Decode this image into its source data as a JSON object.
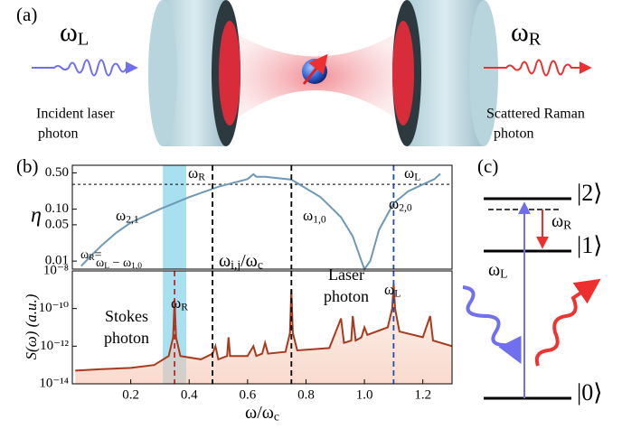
{
  "panel_labels": [
    "(a)",
    "(b)",
    "(c)"
  ],
  "panel_a": {
    "left": {
      "symbol": "ω",
      "sub": "L",
      "caption": [
        "Incident laser",
        "photon"
      ]
    },
    "right": {
      "symbol": "ω",
      "sub": "R",
      "caption": [
        "Scattered Raman",
        "photon"
      ]
    }
  },
  "chart_data": [
    {
      "type": "line",
      "log_y": true,
      "ylabel": "η",
      "xlim": [
        0,
        1.3
      ],
      "ylim": [
        0.007,
        0.7
      ],
      "yticks": [
        0.01,
        0.05,
        {
          "value": 0.1,
          "label": "0.10"
        },
        {
          "value": 0.5,
          "label": "0.50"
        }
      ],
      "hlines": [
        0.3
      ],
      "span": {
        "x": [
          0.31,
          0.39
        ],
        "color": "#a8e0ef"
      },
      "vlines": [
        {
          "x": 0.48,
          "color": "#000000"
        },
        {
          "x": 0.75,
          "color": "#000000"
        },
        {
          "x": 1.1,
          "color": "#1f4fa0"
        }
      ],
      "x": [
        0.03,
        0.06,
        0.1,
        0.15,
        0.2,
        0.3,
        0.4,
        0.5,
        0.6,
        0.62,
        0.63,
        0.66,
        0.75,
        0.85,
        0.92,
        0.96,
        0.99,
        1.0,
        1.02,
        1.05,
        1.1,
        1.15,
        1.2,
        1.24,
        1.26
      ],
      "series": [
        {
          "color": "#6f98b4",
          "values": [
            0.008,
            0.012,
            0.02,
            0.035,
            0.055,
            0.1,
            0.17,
            0.27,
            0.38,
            0.47,
            0.42,
            0.42,
            0.37,
            0.17,
            0.07,
            0.03,
            0.01,
            0.007,
            0.01,
            0.04,
            0.13,
            0.22,
            0.3,
            0.38,
            0.48
          ]
        }
      ],
      "annotations": {
        "omega_R": {
          "symbol": "ω",
          "sub": "R"
        },
        "omega_L": {
          "symbol": "ω",
          "sub": "L"
        },
        "omega_21": {
          "symbol": "ω",
          "sub": "2,1"
        },
        "omega_10": {
          "symbol": "ω",
          "sub": "1,0"
        },
        "omega_20": {
          "symbol": "ω",
          "sub": "2,0"
        },
        "omega_ij": {
          "symbol": "ω",
          "sub": "i,j",
          "rest": "/ω",
          "sub2": "c"
        },
        "relation": {
          "lhs": "ω",
          "lhs_sub": "R",
          "eq": "=",
          "rhs": "ω",
          "rhs_sub": "L",
          "minus": " − ω",
          "minus_sub": "1,0"
        }
      }
    },
    {
      "type": "area",
      "log_y": true,
      "ylabel": "S(ω) (a.u.)",
      "xlabel": {
        "symbol": "ω/ω",
        "sub": "c"
      },
      "xlim": [
        0,
        1.3
      ],
      "ylim": [
        1e-14,
        1e-08
      ],
      "xticks": [
        0.2,
        0.4,
        0.6,
        0.8,
        {
          "value": 1,
          "label": "1.0"
        },
        1.2
      ],
      "yticks": [
        {
          "value": 1e-14,
          "label": "10⁻¹⁴"
        },
        {
          "value": 1e-12,
          "label": "10⁻¹²"
        },
        {
          "value": 1e-10,
          "label": "10⁻¹⁰"
        },
        {
          "value": 1e-08,
          "label": "10⁻⁸"
        }
      ],
      "span": {
        "x": [
          0.31,
          0.39
        ],
        "color": "#a8e0ef"
      },
      "vlines": [
        {
          "x": 0.35,
          "color": "#c0282d"
        },
        {
          "x": 0.48,
          "color": "#000000"
        },
        {
          "x": 0.75,
          "color": "#000000"
        },
        {
          "x": 1.1,
          "color": "#1f4fa0"
        }
      ],
      "x": [
        0.01,
        0.1,
        0.2,
        0.28,
        0.33,
        0.345,
        0.35,
        0.355,
        0.37,
        0.44,
        0.48,
        0.49,
        0.5,
        0.53,
        0.535,
        0.54,
        0.6,
        0.62,
        0.63,
        0.65,
        0.66,
        0.67,
        0.73,
        0.745,
        0.75,
        0.755,
        0.77,
        0.88,
        0.92,
        0.93,
        0.955,
        0.96,
        0.97,
        0.99,
        1.0,
        1.01,
        1.08,
        1.095,
        1.1,
        1.105,
        1.12,
        1.2,
        1.225,
        1.235,
        1.3
      ],
      "series": [
        {
          "color": "#a83a1e",
          "values": [
            5e-14,
            6e-14,
            7e-14,
            1e-13,
            3e-13,
            3e-12,
            3e-10,
            3e-12,
            3e-13,
            2e-13,
            4e-13,
            1e-12,
            2e-13,
            3e-13,
            3e-12,
            3e-13,
            3e-13,
            1e-12,
            3e-13,
            4e-13,
            1.5e-12,
            4e-13,
            5e-13,
            5e-12,
            1e-09,
            5e-12,
            6e-13,
            8e-13,
            3e-11,
            1.5e-12,
            2e-12,
            4e-11,
            2e-12,
            3e-12,
            1e-11,
            4e-12,
            1e-11,
            1e-10,
            2e-09,
            1e-10,
            6e-12,
            3e-12,
            4e-11,
            2e-12,
            1e-12
          ]
        }
      ],
      "annotations": {
        "stokes": [
          "Stokes",
          "photon"
        ],
        "laser": [
          "Laser",
          "photon"
        ],
        "omega_R": {
          "symbol": "ω",
          "sub": "R"
        },
        "omega_L": {
          "symbol": "ω",
          "sub": "L"
        }
      }
    }
  ],
  "panel_c": {
    "levels": [
      "|2⟩",
      "|1⟩",
      "|0⟩"
    ],
    "omega_R": {
      "symbol": "ω",
      "sub": "R"
    },
    "omega_L": {
      "symbol": "ω",
      "sub": "L"
    }
  }
}
